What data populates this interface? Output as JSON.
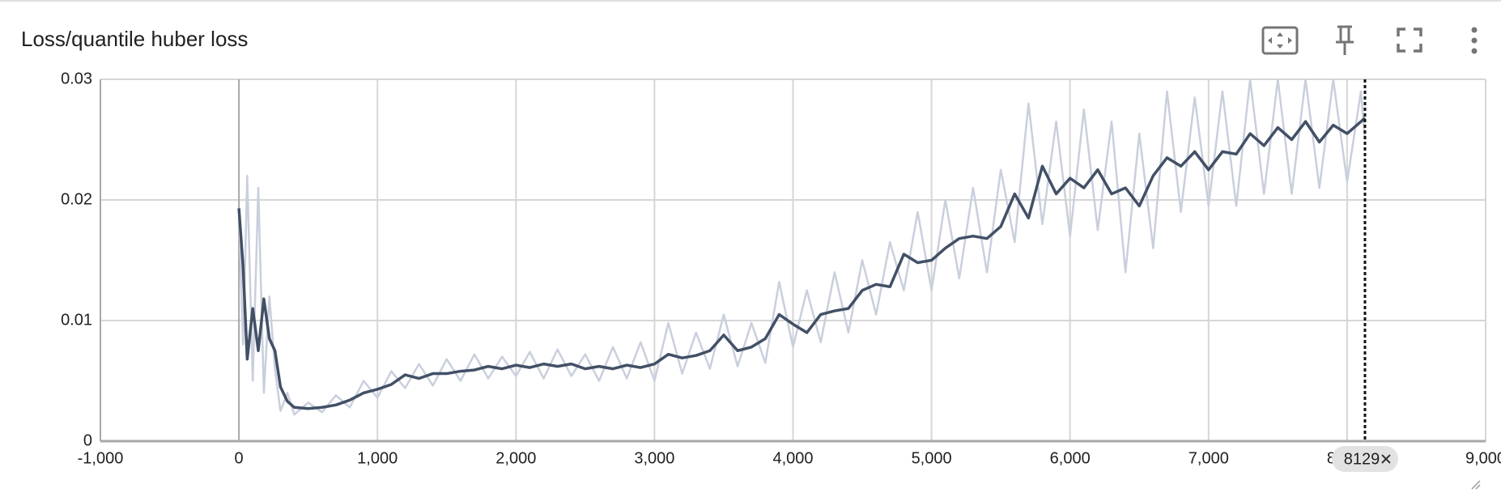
{
  "chart_data": {
    "type": "line",
    "title": "Loss/quantile huber loss",
    "x": [
      0,
      30,
      60,
      100,
      140,
      180,
      220,
      260,
      300,
      350,
      400,
      500,
      600,
      700,
      800,
      900,
      1000,
      1100,
      1200,
      1300,
      1400,
      1500,
      1600,
      1700,
      1800,
      1900,
      2000,
      2100,
      2200,
      2300,
      2400,
      2500,
      2600,
      2700,
      2800,
      2900,
      3000,
      3100,
      3200,
      3300,
      3400,
      3500,
      3600,
      3700,
      3800,
      3900,
      4000,
      4100,
      4200,
      4300,
      4400,
      4500,
      4600,
      4700,
      4800,
      4900,
      5000,
      5100,
      5200,
      5300,
      5400,
      5500,
      5600,
      5700,
      5800,
      5900,
      6000,
      6100,
      6200,
      6300,
      6400,
      6500,
      6600,
      6700,
      6800,
      6900,
      7000,
      7100,
      7200,
      7300,
      7400,
      7500,
      7600,
      7700,
      7800,
      7900,
      8000,
      8100,
      8129
    ],
    "series": [
      {
        "color": "#c9cfdc",
        "width": 2.5,
        "values": [
          0.0193,
          0.008,
          0.022,
          0.005,
          0.021,
          0.004,
          0.012,
          0.006,
          0.0025,
          0.004,
          0.0022,
          0.0032,
          0.0024,
          0.0038,
          0.0028,
          0.005,
          0.0036,
          0.0058,
          0.0044,
          0.0064,
          0.0046,
          0.0068,
          0.005,
          0.0072,
          0.0052,
          0.007,
          0.0054,
          0.0074,
          0.0052,
          0.0076,
          0.0054,
          0.0072,
          0.005,
          0.0078,
          0.0052,
          0.0082,
          0.005,
          0.0098,
          0.0056,
          0.009,
          0.006,
          0.0105,
          0.0062,
          0.0098,
          0.0065,
          0.0132,
          0.0078,
          0.0125,
          0.0082,
          0.014,
          0.009,
          0.015,
          0.0105,
          0.0165,
          0.0125,
          0.019,
          0.0125,
          0.02,
          0.0135,
          0.021,
          0.014,
          0.0225,
          0.0165,
          0.028,
          0.018,
          0.0265,
          0.017,
          0.0275,
          0.0175,
          0.0265,
          0.014,
          0.0255,
          0.016,
          0.029,
          0.019,
          0.0285,
          0.0195,
          0.029,
          0.0195,
          0.03,
          0.0205,
          0.03,
          0.0205,
          0.03,
          0.021,
          0.03,
          0.0215,
          0.029,
          0.025
        ]
      },
      {
        "color": "#425066",
        "width": 3.5,
        "values": [
          0.0193,
          0.0145,
          0.0068,
          0.011,
          0.0075,
          0.0118,
          0.0085,
          0.0075,
          0.0045,
          0.0033,
          0.0028,
          0.0027,
          0.0028,
          0.003,
          0.0034,
          0.004,
          0.0043,
          0.0047,
          0.0055,
          0.0052,
          0.0056,
          0.0056,
          0.0058,
          0.0059,
          0.0062,
          0.006,
          0.0063,
          0.0061,
          0.0064,
          0.0062,
          0.0064,
          0.006,
          0.0062,
          0.006,
          0.0063,
          0.0061,
          0.0064,
          0.0072,
          0.0069,
          0.0071,
          0.0075,
          0.0088,
          0.0075,
          0.0078,
          0.0085,
          0.0105,
          0.0097,
          0.009,
          0.0105,
          0.0108,
          0.011,
          0.0125,
          0.013,
          0.0128,
          0.0155,
          0.0148,
          0.015,
          0.016,
          0.0168,
          0.017,
          0.0168,
          0.0178,
          0.0205,
          0.0185,
          0.0228,
          0.0205,
          0.0218,
          0.021,
          0.0225,
          0.0205,
          0.021,
          0.0195,
          0.022,
          0.0235,
          0.0228,
          0.024,
          0.0225,
          0.024,
          0.0238,
          0.0255,
          0.0245,
          0.026,
          0.025,
          0.0265,
          0.0248,
          0.0262,
          0.0255,
          0.0265,
          0.0268
        ]
      }
    ],
    "xlim": [
      -1000,
      9000
    ],
    "xticks": [
      {
        "value": -1000,
        "label": "-1,000"
      },
      0,
      {
        "value": 1000,
        "label": "1,000"
      },
      {
        "value": 2000,
        "label": "2,000"
      },
      {
        "value": 3000,
        "label": "3,000"
      },
      {
        "value": 4000,
        "label": "4,000"
      },
      {
        "value": 5000,
        "label": "5,000"
      },
      {
        "value": 6000,
        "label": "6,000"
      },
      {
        "value": 7000,
        "label": "7,000"
      },
      {
        "value": 8000,
        "label": "8,000"
      },
      {
        "value": 9000,
        "label": "9,000"
      }
    ],
    "ylim": [
      0,
      0.03
    ],
    "yticks": [
      0,
      0.01,
      0.02,
      0.03
    ],
    "grid": true,
    "cursor_step": 8129
  }
}
